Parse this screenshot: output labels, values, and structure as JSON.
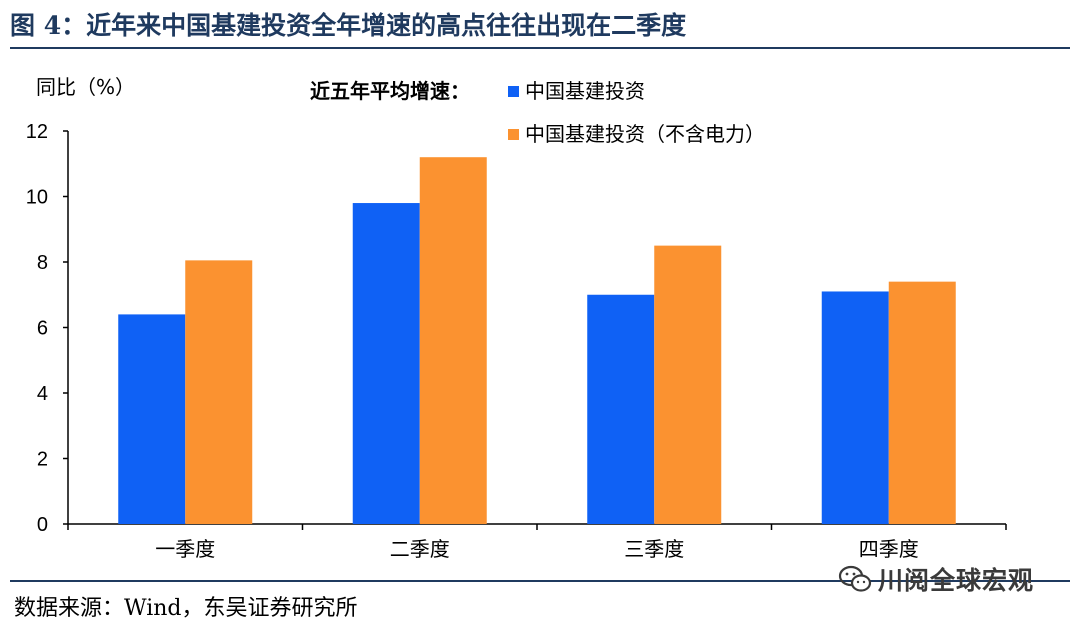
{
  "header": {
    "title": "图 4：近年来中国基建投资全年增速的高点往往出现在二季度"
  },
  "footer": {
    "source": "数据来源：Wind，东吴证券研究所"
  },
  "watermark": {
    "text": "川阅全球宏观"
  },
  "chart_data": {
    "type": "bar",
    "ylabel": "同比（%）",
    "legend_title": "近五年平均增速：",
    "legend_placement": "top",
    "categories": [
      "一季度",
      "二季度",
      "三季度",
      "四季度"
    ],
    "series": [
      {
        "name": "中国基建投资",
        "color": "#0f61f5",
        "values": [
          6.4,
          9.8,
          7.0,
          7.1
        ]
      },
      {
        "name": "中国基建投资（不含电力）",
        "color": "#fb9230",
        "values": [
          8.05,
          11.2,
          8.5,
          7.4
        ]
      }
    ],
    "ylim": [
      0,
      12
    ],
    "yticks": [
      0,
      2,
      4,
      6,
      8,
      10,
      12
    ],
    "grid": false
  }
}
